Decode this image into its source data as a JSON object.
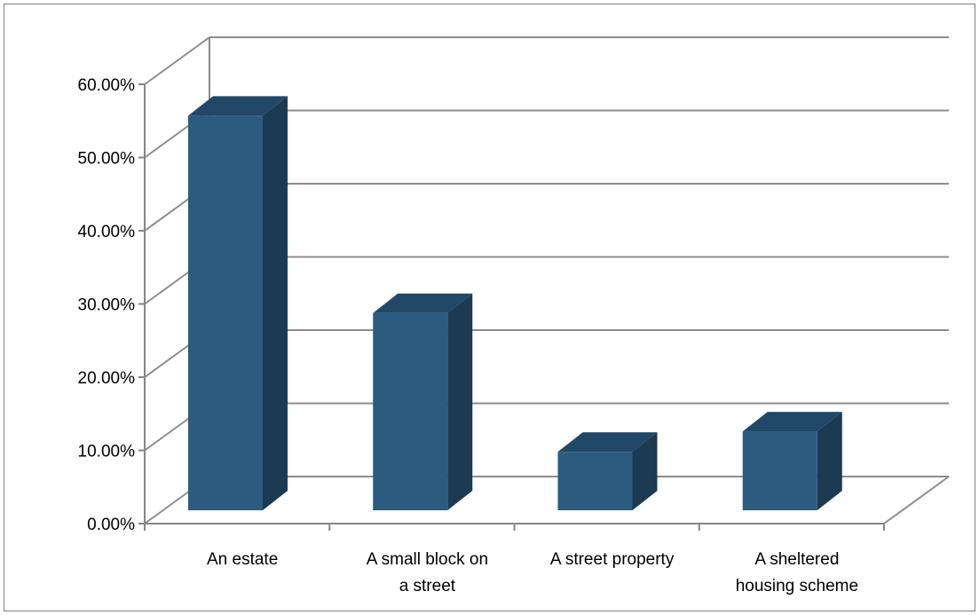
{
  "chart_data": {
    "type": "bar",
    "style": "3d-column",
    "title": "",
    "xlabel": "",
    "ylabel": "",
    "categories": [
      [
        "An estate"
      ],
      [
        "A small block on",
        "a street"
      ],
      [
        "A street property"
      ],
      [
        "A sheltered",
        "housing scheme"
      ]
    ],
    "values": [
      0.54,
      0.27,
      0.08,
      0.108
    ],
    "ylim": [
      0,
      0.6
    ],
    "yticks": [
      "0.00%",
      "10.00%",
      "20.00%",
      "30.00%",
      "40.00%",
      "50.00%",
      "60.00%"
    ],
    "grid": true,
    "legend": "none",
    "colors": {
      "bar_front": "#2b5b7f",
      "bar_side": "#1c3a52",
      "bar_top": "#224868",
      "grid": "#8c8c8c",
      "axis": "#868686"
    }
  }
}
